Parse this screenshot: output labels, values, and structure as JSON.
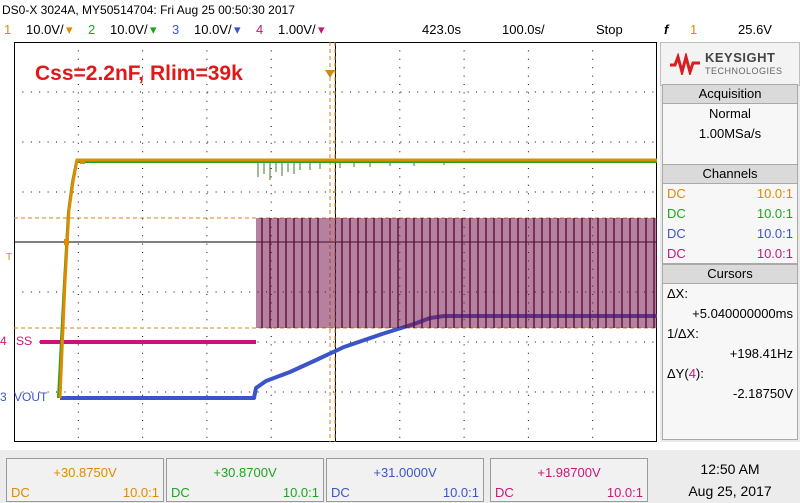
{
  "header": {
    "title": "DS0-X 3024A, MY50514704: Fri Aug 25 00:50:30 2017",
    "channels": [
      {
        "num": "1",
        "scale": "10.0V/",
        "color": "#e08a00"
      },
      {
        "num": "2",
        "scale": "10.0V/",
        "color": "#1fa51f"
      },
      {
        "num": "3",
        "scale": "10.0V/",
        "color": "#3b55c9"
      },
      {
        "num": "4",
        "scale": "1.00V/",
        "color": "#c8187a"
      }
    ],
    "delay": "423.0s",
    "timebase": "100.0s/",
    "run_state": "Stop",
    "trigger_symbol": "f",
    "trigger_channel": "1",
    "trigger_level": "25.6V"
  },
  "screen": {
    "annotation": "Css=2.2nF, Rlim=39k",
    "markers": {
      "trigger": "T",
      "ch4_num": "4",
      "ch4_label": "SS",
      "ch3_num": "3",
      "ch3_label": "VOUT"
    }
  },
  "right_panel": {
    "brand": "KEYSIGHT",
    "brand_sub": "TECHNOLOGIES",
    "acquisition": {
      "title": "Acquisition",
      "mode": "Normal",
      "rate": "1.00MSa/s"
    },
    "channels": {
      "title": "Channels",
      "rows": [
        {
          "coupling": "DC",
          "ratio": "10.0:1",
          "color": "#e08a00"
        },
        {
          "coupling": "DC",
          "ratio": "10.0:1",
          "color": "#1fa51f"
        },
        {
          "coupling": "DC",
          "ratio": "10.0:1",
          "color": "#3b55c9"
        },
        {
          "coupling": "DC",
          "ratio": "10.0:1",
          "color": "#c8187a"
        }
      ]
    },
    "cursors": {
      "title": "Cursors",
      "dx_label": "ΔX:",
      "dx_value": "+5.040000000ms",
      "inv_dx_label": "1/ΔX:",
      "inv_dx_value": "+198.41Hz",
      "dy_label": "ΔY(",
      "dy_channel": "4",
      "dy_close": "):",
      "dy_value": "-2.18750V"
    }
  },
  "bottom": {
    "channels": [
      {
        "value": "+30.8750V",
        "coupling": "DC",
        "ratio": "10.0:1",
        "color": "#e08a00"
      },
      {
        "value": "+30.8700V",
        "coupling": "DC",
        "ratio": "10.0:1",
        "color": "#1fa51f"
      },
      {
        "value": "+31.0000V",
        "coupling": "DC",
        "ratio": "10.0:1",
        "color": "#3b55c9"
      },
      {
        "value": "+1.98700V",
        "coupling": "DC",
        "ratio": "10.0:1",
        "color": "#c8187a"
      }
    ],
    "time": "12:50 AM",
    "date": "Aug 25, 2017"
  }
}
